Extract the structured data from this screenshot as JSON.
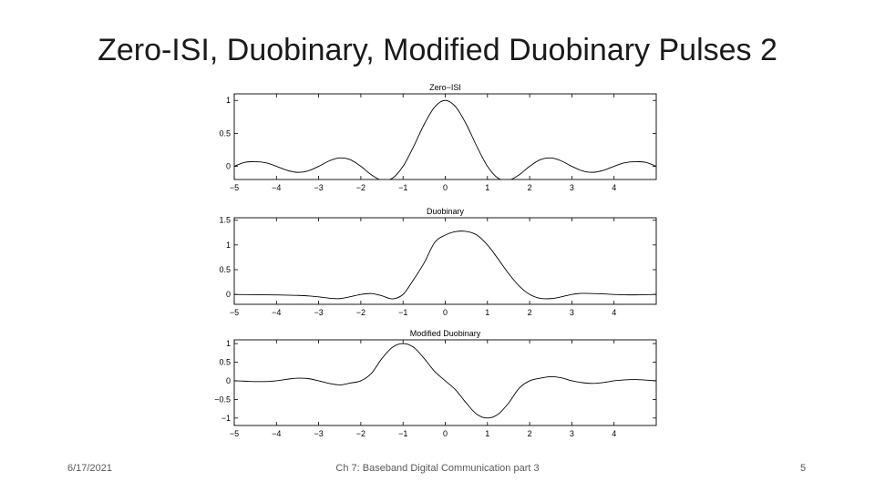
{
  "slide": {
    "title": "Zero-ISI, Duobinary, Modified Duobinary Pulses 2",
    "footer_date": "6/17/2021",
    "footer_center": "Ch 7: Baseband Digital Communication part 3",
    "page_number": "5"
  },
  "chart_data": [
    {
      "type": "line",
      "title": "Zero−ISI",
      "xlabel": "",
      "ylabel": "",
      "xlim": [
        -5,
        5
      ],
      "ylim": [
        -0.2,
        1.1
      ],
      "xticks": [
        -5,
        -4,
        -3,
        -2,
        -1,
        0,
        1,
        2,
        3,
        4
      ],
      "xtick_labels": [
        "−5",
        "−4",
        "−3",
        "−2",
        "−1",
        "0",
        "1",
        "2",
        "3",
        "4"
      ],
      "yticks": [
        0,
        0.5,
        1
      ],
      "ytick_labels": [
        "0",
        "0.5",
        "1"
      ],
      "grid": false,
      "legend": "none",
      "line_color": "#000000",
      "series": [
        {
          "x": [
            -5,
            -4.75,
            -4.5,
            -4.25,
            -4,
            -3.75,
            -3.5,
            -3.25,
            -3,
            -2.75,
            -2.5,
            -2.25,
            -2,
            -1.75,
            -1.5,
            -1.25,
            -1,
            -0.75,
            -0.5,
            -0.25,
            0,
            0.25,
            0.5,
            0.75,
            1,
            1.25,
            1.5,
            1.75,
            2,
            2.25,
            2.5,
            2.75,
            3,
            3.25,
            3.5,
            3.75,
            4,
            4.25,
            4.5,
            4.75,
            5
          ],
          "y": [
            0,
            0.06,
            0.071,
            0.053,
            0,
            -0.06,
            -0.091,
            -0.069,
            0,
            0.082,
            0.127,
            0.1,
            0,
            -0.129,
            -0.212,
            -0.18,
            0,
            0.3,
            0.637,
            0.9,
            1,
            0.9,
            0.637,
            0.3,
            0,
            -0.18,
            -0.212,
            -0.129,
            0,
            0.1,
            0.127,
            0.082,
            0,
            -0.069,
            -0.091,
            -0.06,
            0,
            0.053,
            0.071,
            0.06,
            0
          ]
        }
      ]
    },
    {
      "type": "line",
      "title": "Duobinary",
      "xlabel": "",
      "ylabel": "",
      "xlim": [
        -5,
        5
      ],
      "ylim": [
        -0.2,
        1.55
      ],
      "xticks": [
        -5,
        -4,
        -3,
        -2,
        -1,
        0,
        1,
        2,
        3,
        4
      ],
      "xtick_labels": [
        "−5",
        "−4",
        "−3",
        "−2",
        "−1",
        "0",
        "1",
        "2",
        "3",
        "4"
      ],
      "yticks": [
        0,
        0.5,
        1,
        1.5
      ],
      "ytick_labels": [
        "0",
        "0.5",
        "1",
        "1.5"
      ],
      "grid": false,
      "legend": "none",
      "line_color": "#000000",
      "series": [
        {
          "x": [
            -5,
            -4.75,
            -4.5,
            -4.25,
            -4,
            -3.75,
            -3.5,
            -3.25,
            -3,
            -2.75,
            -2.5,
            -2.25,
            -2,
            -1.75,
            -1.5,
            -1.25,
            -1,
            -0.75,
            -0.5,
            -0.25,
            0,
            0.25,
            0.5,
            0.75,
            1,
            1.25,
            1.5,
            1.75,
            2,
            2.25,
            2.5,
            2.75,
            3,
            3.25,
            3.5,
            3.75,
            4,
            4.25,
            4.5,
            4.75,
            5
          ],
          "y": [
            0,
            -0.004,
            -0.005,
            -0.007,
            -0.01,
            -0.014,
            -0.02,
            -0.03,
            -0.05,
            -0.076,
            -0.085,
            -0.047,
            0,
            0.018,
            -0.028,
            -0.09,
            0,
            0.3,
            0.637,
            1.05,
            1.2,
            1.27,
            1.273,
            1.2,
            1,
            0.72,
            0.424,
            0.171,
            0,
            -0.08,
            -0.085,
            -0.05,
            0,
            0.022,
            0.018,
            0.01,
            0,
            -0.007,
            -0.009,
            -0.005,
            0
          ]
        }
      ]
    },
    {
      "type": "line",
      "title": "Modified Duobinary",
      "xlabel": "",
      "ylabel": "",
      "xlim": [
        -5,
        5
      ],
      "ylim": [
        -1.2,
        1.1
      ],
      "xticks": [
        -5,
        -4,
        -3,
        -2,
        -1,
        0,
        1,
        2,
        3,
        4
      ],
      "xtick_labels": [
        "−5",
        "−4",
        "−3",
        "−2",
        "−1",
        "0",
        "1",
        "2",
        "3",
        "4"
      ],
      "yticks": [
        -1,
        -0.5,
        0,
        0.5,
        1
      ],
      "ytick_labels": [
        "−1",
        "−0.5",
        "0",
        "0.5",
        "1"
      ],
      "grid": false,
      "legend": "none",
      "line_color": "#000000",
      "series": [
        {
          "x": [
            -5,
            -4.75,
            -4.5,
            -4.25,
            -4,
            -3.75,
            -3.5,
            -3.25,
            -3,
            -2.75,
            -2.5,
            -2.25,
            -2,
            -1.75,
            -1.5,
            -1.25,
            -1,
            -0.75,
            -0.5,
            -0.25,
            0,
            0.25,
            0.5,
            0.75,
            1,
            1.25,
            1.5,
            1.75,
            2,
            2.25,
            2.5,
            2.75,
            3,
            3.25,
            3.5,
            3.75,
            4,
            4.25,
            4.5,
            4.75,
            5
          ],
          "y": [
            0,
            -0.01,
            -0.02,
            -0.02,
            0,
            0.04,
            0.07,
            0.06,
            0,
            -0.07,
            -0.11,
            -0.06,
            0,
            0.2,
            0.6,
            0.9,
            1,
            0.9,
            0.6,
            0.25,
            0,
            -0.25,
            -0.6,
            -0.9,
            -1,
            -0.9,
            -0.6,
            -0.2,
            0,
            0.07,
            0.11,
            0.08,
            0,
            -0.05,
            -0.07,
            -0.045,
            0,
            0.025,
            0.035,
            0.02,
            0
          ]
        }
      ]
    }
  ]
}
